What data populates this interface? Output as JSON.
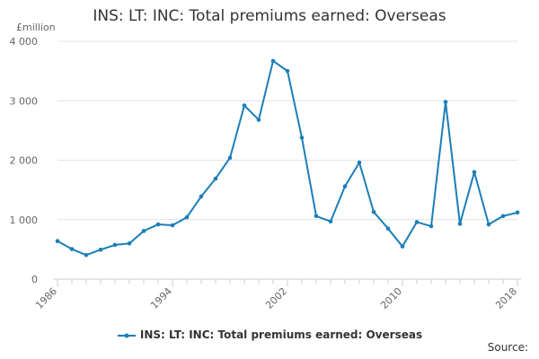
{
  "chart_data": {
    "type": "line",
    "title": "INS: LT: INC: Total premiums earned: Overseas",
    "unit_label": "£million",
    "x": [
      1986,
      1987,
      1988,
      1989,
      1990,
      1991,
      1992,
      1993,
      1994,
      1995,
      1996,
      1997,
      1998,
      1999,
      2000,
      2001,
      2002,
      2003,
      2004,
      2005,
      2006,
      2007,
      2008,
      2009,
      2010,
      2011,
      2012,
      2013,
      2014,
      2015,
      2016,
      2017,
      2018
    ],
    "series": [
      {
        "name": "INS: LT: INC: Total premiums earned: Overseas",
        "color": "#1b7eb8",
        "values": [
          640,
          505,
          405,
          495,
          575,
          600,
          810,
          920,
          905,
          1040,
          1390,
          1690,
          2040,
          2920,
          2680,
          3670,
          3500,
          2380,
          1060,
          970,
          1560,
          1960,
          1130,
          850,
          550,
          960,
          890,
          2980,
          930,
          1800,
          920,
          1060,
          1120
        ]
      }
    ],
    "ylim": [
      0,
      4000
    ],
    "y_ticks": [
      0,
      1000,
      2000,
      3000,
      4000
    ],
    "y_tick_labels": [
      "0",
      "1 000",
      "2 000",
      "3 000",
      "4 000"
    ],
    "x_ticks": [
      1986,
      1994,
      2002,
      2010,
      2018
    ],
    "x_tick_labels": [
      "1986",
      "1994",
      "2002",
      "2010",
      "2018"
    ],
    "grid": true,
    "legend_position": "bottom",
    "source_label": "Source:"
  }
}
